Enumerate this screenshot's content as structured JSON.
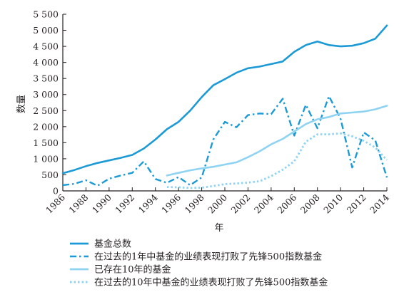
{
  "chart_data": {
    "type": "line",
    "title": "",
    "xlabel": "年",
    "ylabel": "数量",
    "xlim": [
      1986,
      2014
    ],
    "ylim": [
      0,
      5500
    ],
    "x_ticks": [
      1986,
      1988,
      1990,
      1992,
      1994,
      1996,
      1998,
      2000,
      2002,
      2004,
      2006,
      2008,
      2010,
      2012,
      2014
    ],
    "x_tick_labels": [
      "1986",
      "1988",
      "1990",
      "1992",
      "1994",
      "1996",
      "1998",
      "2000",
      "2002",
      "2004",
      "2006",
      "2008",
      "2010",
      "2012",
      "2014"
    ],
    "y_ticks": [
      0,
      500,
      1000,
      1500,
      2000,
      2500,
      3000,
      3500,
      4000,
      4500,
      5000,
      5500
    ],
    "y_tick_labels": [
      "0",
      "500",
      "1 000",
      "1 500",
      "2 000",
      "2 500",
      "3 000",
      "3 500",
      "4 000",
      "4 500",
      "5 000",
      "5 500"
    ],
    "grid": false,
    "legend_position": "bottom",
    "series": [
      {
        "name": "基金总数",
        "color": "#1b9ad6",
        "style": "solid",
        "x": [
          1986,
          1987,
          1988,
          1989,
          1990,
          1991,
          1992,
          1993,
          1994,
          1995,
          1996,
          1997,
          1998,
          1999,
          2000,
          2001,
          2002,
          2003,
          2004,
          2005,
          2006,
          2007,
          2008,
          2009,
          2010,
          2011,
          2012,
          2013,
          2014
        ],
        "y": [
          550,
          650,
          770,
          870,
          950,
          1030,
          1120,
          1320,
          1600,
          1920,
          2150,
          2500,
          2920,
          3290,
          3480,
          3680,
          3820,
          3870,
          3950,
          4030,
          4330,
          4540,
          4650,
          4540,
          4500,
          4520,
          4600,
          4740,
          5150
        ]
      },
      {
        "name": "在过去的1年中基金的业绩表现打败了先锋500指数基金",
        "color": "#1b9ad6",
        "style": "dash-dot",
        "x": [
          1986,
          1987,
          1988,
          1989,
          1990,
          1991,
          1992,
          1993,
          1994,
          1995,
          1996,
          1997,
          1998,
          1999,
          2000,
          2001,
          2002,
          2003,
          2004,
          2005,
          2006,
          2007,
          2008,
          2009,
          2010,
          2011,
          2012,
          2013,
          2014
        ],
        "y": [
          180,
          220,
          330,
          160,
          380,
          480,
          560,
          920,
          370,
          250,
          430,
          180,
          420,
          1600,
          2150,
          1980,
          2360,
          2410,
          2390,
          2870,
          1720,
          2680,
          1950,
          2950,
          2250,
          730,
          1820,
          1570,
          420
        ]
      },
      {
        "name": "已存在10年的基金",
        "color": "#8fd3f3",
        "style": "solid",
        "x": [
          1995,
          1996,
          1997,
          1998,
          1999,
          2000,
          2001,
          2002,
          2003,
          2004,
          2005,
          2006,
          2007,
          2008,
          2009,
          2010,
          2011,
          2012,
          2013,
          2014
        ],
        "y": [
          480,
          560,
          640,
          700,
          750,
          820,
          890,
          1050,
          1230,
          1450,
          1620,
          1850,
          2080,
          2230,
          2300,
          2410,
          2440,
          2470,
          2540,
          2650
        ]
      },
      {
        "name": "在过去的10年中基金的业绩表现打败了先锋500指数基金",
        "color": "#8fd3f3",
        "style": "dotted",
        "x": [
          1995,
          1996,
          1997,
          1998,
          1999,
          2000,
          2001,
          2002,
          2003,
          2004,
          2005,
          2006,
          2007,
          2008,
          2009,
          2010,
          2011,
          2012,
          2013,
          2014
        ],
        "y": [
          120,
          110,
          90,
          100,
          150,
          210,
          230,
          260,
          300,
          460,
          660,
          920,
          1530,
          1760,
          1760,
          1790,
          1700,
          1560,
          1350,
          960
        ]
      }
    ]
  }
}
